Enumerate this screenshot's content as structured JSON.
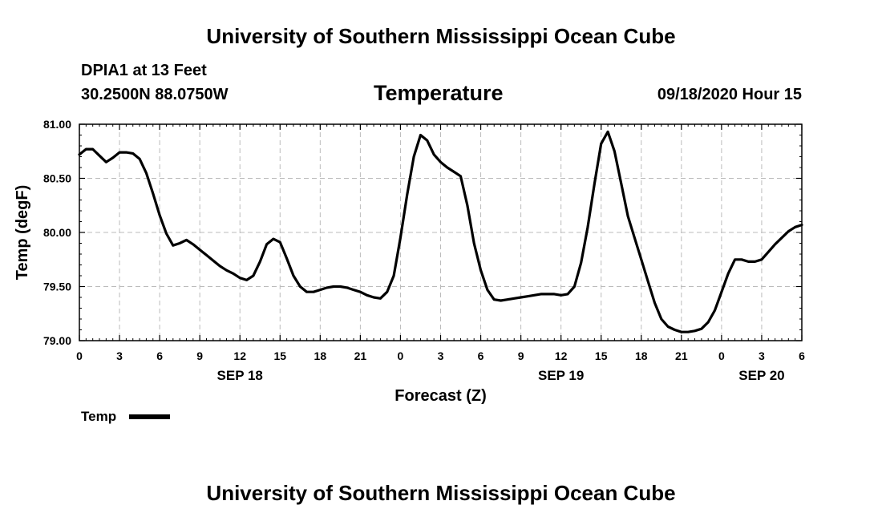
{
  "header": {
    "title": "University of Southern Mississippi Ocean Cube",
    "station": "DPIA1 at 13 Feet",
    "coords": "30.2500N 88.0750W",
    "chart_title": "Temperature",
    "datetime": "09/18/2020 Hour 15"
  },
  "footer": {
    "title": "University of Southern Mississippi Ocean Cube"
  },
  "legend": {
    "label": "Temp"
  },
  "colors": {
    "line": "#000000",
    "grid": "#bbbbbb"
  },
  "chart_data": {
    "type": "line",
    "title": "Temperature",
    "xlabel": "Forecast (Z)",
    "ylabel": "Temp (degF)",
    "xlim": [
      0,
      54
    ],
    "ylim": [
      79.0,
      81.0
    ],
    "yticks": [
      79.0,
      79.5,
      80.0,
      80.5,
      81.0
    ],
    "ytick_labels": [
      "79.00",
      "79.50",
      "80.00",
      "80.50",
      "81.00"
    ],
    "xticks": [
      0,
      3,
      6,
      9,
      12,
      15,
      18,
      21,
      24,
      27,
      30,
      33,
      36,
      39,
      42,
      45,
      48,
      51,
      54
    ],
    "xtick_labels": [
      "0",
      "3",
      "6",
      "9",
      "12",
      "15",
      "18",
      "21",
      "0",
      "3",
      "6",
      "9",
      "12",
      "15",
      "18",
      "21",
      "0",
      "3",
      "6"
    ],
    "date_labels": [
      {
        "x": 12,
        "label": "SEP 18"
      },
      {
        "x": 36,
        "label": "SEP 19"
      },
      {
        "x": 51,
        "label": "SEP 20"
      }
    ],
    "grid": true,
    "legend_position": "bottom-left",
    "series": [
      {
        "name": "Temp",
        "x": [
          0,
          0.5,
          1,
          1.5,
          2,
          2.5,
          3,
          3.5,
          4,
          4.5,
          5,
          5.5,
          6,
          6.5,
          7,
          7.5,
          8,
          8.5,
          9,
          9.5,
          10,
          10.5,
          11,
          11.5,
          12,
          12.5,
          13,
          13.5,
          14,
          14.5,
          15,
          15.5,
          16,
          16.5,
          17,
          17.5,
          18,
          18.5,
          19,
          19.5,
          20,
          20.5,
          21,
          21.5,
          22,
          22.5,
          23,
          23.5,
          24,
          24.5,
          25,
          25.5,
          26,
          26.5,
          27,
          27.5,
          28,
          28.5,
          29,
          29.5,
          30,
          30.5,
          31,
          31.5,
          32,
          32.5,
          33,
          33.5,
          34,
          34.5,
          35,
          35.5,
          36,
          36.5,
          37,
          37.5,
          38,
          38.5,
          39,
          39.5,
          40,
          40.5,
          41,
          41.5,
          42,
          42.5,
          43,
          43.5,
          44,
          44.5,
          45,
          45.5,
          46,
          46.5,
          47,
          47.5,
          48,
          48.5,
          49,
          49.5,
          50,
          50.5,
          51,
          51.5,
          52,
          52.5,
          53,
          53.5,
          54
        ],
        "values": [
          80.72,
          80.77,
          80.77,
          80.71,
          80.65,
          80.69,
          80.74,
          80.74,
          80.73,
          80.68,
          80.55,
          80.36,
          80.16,
          79.99,
          79.88,
          79.9,
          79.93,
          79.89,
          79.84,
          79.79,
          79.74,
          79.69,
          79.65,
          79.62,
          79.58,
          79.56,
          79.6,
          79.73,
          79.89,
          79.94,
          79.91,
          79.76,
          79.6,
          79.5,
          79.45,
          79.45,
          79.47,
          79.49,
          79.5,
          79.5,
          79.49,
          79.47,
          79.45,
          79.42,
          79.4,
          79.39,
          79.45,
          79.6,
          79.95,
          80.35,
          80.7,
          80.9,
          80.85,
          80.72,
          80.65,
          80.6,
          80.56,
          80.52,
          80.25,
          79.9,
          79.65,
          79.47,
          79.38,
          79.37,
          79.38,
          79.39,
          79.4,
          79.41,
          79.42,
          79.43,
          79.43,
          79.43,
          79.42,
          79.43,
          79.5,
          79.72,
          80.05,
          80.45,
          80.82,
          80.93,
          80.75,
          80.45,
          80.15,
          79.95,
          79.75,
          79.55,
          79.35,
          79.2,
          79.13,
          79.1,
          79.08,
          79.08,
          79.09,
          79.11,
          79.17,
          79.28,
          79.45,
          79.62,
          79.75,
          79.75,
          79.73,
          79.73,
          79.75,
          79.82,
          79.89,
          79.95,
          80.01,
          80.05,
          80.07
        ]
      }
    ]
  }
}
